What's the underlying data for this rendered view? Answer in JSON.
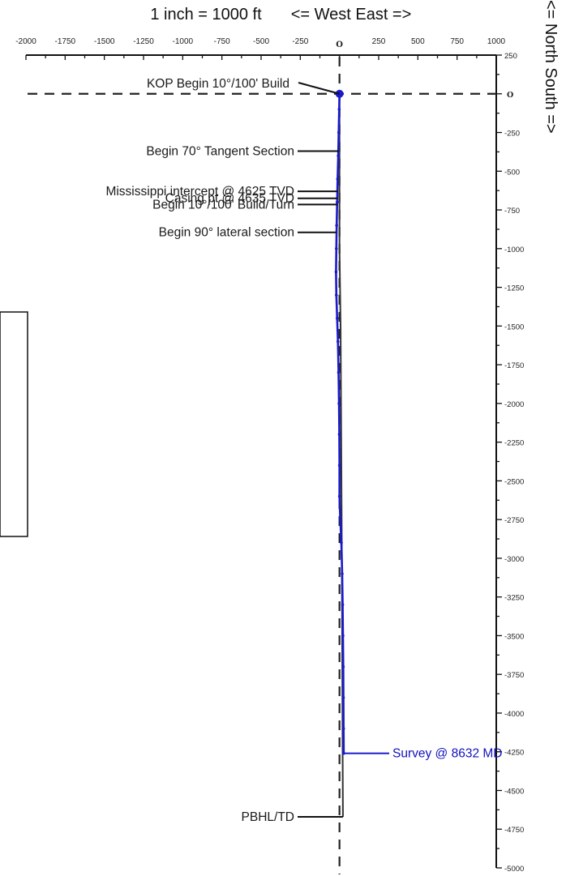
{
  "chart_data": {
    "type": "line",
    "title": "1 inch =  1000 ft",
    "west_east_label": "<= West   East =>",
    "north_south_label": "<= North    South =>",
    "xlim": [
      -2000,
      1000
    ],
    "ylim": [
      -5000,
      250
    ],
    "x_ticks": [
      {
        "v": -2000,
        "label": "-2000"
      },
      {
        "v": -1750,
        "label": "-1750"
      },
      {
        "v": -1500,
        "label": "-1500"
      },
      {
        "v": -1250,
        "label": "-1250"
      },
      {
        "v": -1000,
        "label": "-1000"
      },
      {
        "v": -750,
        "label": "-750"
      },
      {
        "v": -500,
        "label": "-500"
      },
      {
        "v": -250,
        "label": "-250"
      },
      {
        "v": 0,
        "label": "O"
      },
      {
        "v": 250,
        "label": "250"
      },
      {
        "v": 500,
        "label": "500"
      },
      {
        "v": 750,
        "label": "750"
      },
      {
        "v": 1000,
        "label": "1000"
      }
    ],
    "y_ticks": [
      {
        "v": 250,
        "label": "250"
      },
      {
        "v": 0,
        "label": "O"
      },
      {
        "v": -250,
        "label": "-250"
      },
      {
        "v": -500,
        "label": "-500"
      },
      {
        "v": -750,
        "label": "-750"
      },
      {
        "v": -1000,
        "label": "-1000"
      },
      {
        "v": -1250,
        "label": "-1250"
      },
      {
        "v": -1500,
        "label": "-1500"
      },
      {
        "v": -1750,
        "label": "-1750"
      },
      {
        "v": -2000,
        "label": "-2000"
      },
      {
        "v": -2250,
        "label": "-2250"
      },
      {
        "v": -2500,
        "label": "-2500"
      },
      {
        "v": -2750,
        "label": "-2750"
      },
      {
        "v": -3000,
        "label": "-3000"
      },
      {
        "v": -3250,
        "label": "-3250"
      },
      {
        "v": -3500,
        "label": "-3500"
      },
      {
        "v": -3750,
        "label": "-3750"
      },
      {
        "v": -4000,
        "label": "-4000"
      },
      {
        "v": -4250,
        "label": "-4250"
      },
      {
        "v": -4500,
        "label": "-4500"
      },
      {
        "v": -4750,
        "label": "-4750"
      },
      {
        "v": -5000,
        "label": "-5000"
      }
    ],
    "planned_path": [
      {
        "x": 0,
        "y": 0
      },
      {
        "x": 0,
        "y": -1000
      },
      {
        "x": 7,
        "y": -1500
      },
      {
        "x": 15,
        "y": -3000
      },
      {
        "x": 20,
        "y": -4250
      },
      {
        "x": 22,
        "y": -4670
      }
    ],
    "series": [
      {
        "color": "#1a1acc",
        "points": [
          {
            "x": 0,
            "y": 0
          },
          {
            "x": -2,
            "y": -100
          },
          {
            "x": -5,
            "y": -250
          },
          {
            "x": -8,
            "y": -400
          },
          {
            "x": -12,
            "y": -550
          },
          {
            "x": -15,
            "y": -700
          },
          {
            "x": -18,
            "y": -850
          },
          {
            "x": -20,
            "y": -1000
          },
          {
            "x": -22,
            "y": -1150
          },
          {
            "x": -20,
            "y": -1300
          },
          {
            "x": -15,
            "y": -1450
          },
          {
            "x": -10,
            "y": -1600
          },
          {
            "x": -6,
            "y": -1800
          },
          {
            "x": -3,
            "y": -2000
          },
          {
            "x": -1,
            "y": -2200
          },
          {
            "x": 0,
            "y": -2400
          },
          {
            "x": 0,
            "y": -2600
          },
          {
            "x": 5,
            "y": -2750
          },
          {
            "x": 12,
            "y": -2900
          },
          {
            "x": 17,
            "y": -3100
          },
          {
            "x": 20,
            "y": -3300
          },
          {
            "x": 22,
            "y": -3500
          },
          {
            "x": 24,
            "y": -3700
          },
          {
            "x": 25,
            "y": -3900
          },
          {
            "x": 26,
            "y": -4100
          },
          {
            "x": 27,
            "y": -4260
          }
        ]
      }
    ],
    "kop_marker": {
      "x": 0,
      "y": 0
    },
    "annotations": [
      {
        "text": "KOP Begin  10°/100' Build",
        "x": 0,
        "y": 0
      },
      {
        "text": "Begin  70° Tangent Section",
        "x": -4,
        "y": -370
      },
      {
        "text": "Mississippi intercept @ 4625 TVD",
        "x": -10,
        "y": -630
      },
      {
        "text": "Casing pt @ 4635 TVD",
        "x": -12,
        "y": -675
      },
      {
        "text": "Begin  10°/100' Build/Turn",
        "x": -14,
        "y": -715
      },
      {
        "text": "Begin 90° lateral section",
        "x": -18,
        "y": -895
      },
      {
        "text": "PBHL/TD",
        "x": 22,
        "y": -4670
      }
    ],
    "survey_label": {
      "text": "Survey @  8632 MD",
      "x": 27,
      "y": -4260
    }
  }
}
